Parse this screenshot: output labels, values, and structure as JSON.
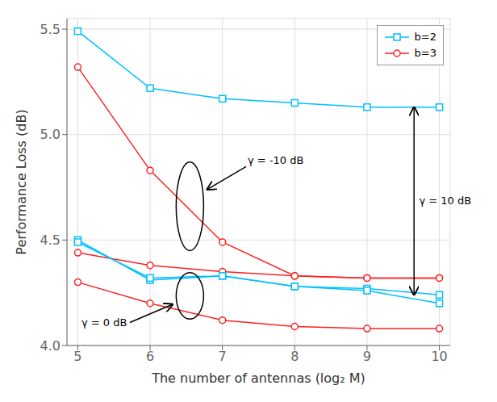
{
  "chart_data": {
    "type": "line",
    "x": [
      5,
      6,
      7,
      8,
      9,
      10
    ],
    "series": [
      {
        "name": "b=2",
        "color": "#00BFFF",
        "marker": "square",
        "values": [
          5.49,
          5.22,
          5.17,
          5.15,
          5.13,
          5.13
        ]
      },
      {
        "name": "b=3",
        "color": "#FF2020",
        "marker": "circle",
        "values": [
          5.32,
          4.83,
          4.49,
          4.33,
          4.32,
          4.32
        ]
      },
      {
        "name": "b=2",
        "color": "#00BFFF",
        "marker": "square",
        "values": [
          4.5,
          4.31,
          4.33,
          4.28,
          4.27,
          4.24
        ]
      },
      {
        "name": "b=3",
        "color": "#FF2020",
        "marker": "circle",
        "values": [
          4.44,
          4.38,
          4.35,
          4.33,
          4.32,
          4.32
        ]
      },
      {
        "name": "b=2",
        "color": "#00BFFF",
        "marker": "square",
        "values": [
          4.49,
          4.32,
          4.33,
          4.28,
          4.26,
          4.2
        ]
      },
      {
        "name": "b=3",
        "color": "#FF2020",
        "marker": "circle",
        "values": [
          4.3,
          4.2,
          4.12,
          4.09,
          4.08,
          4.08
        ]
      }
    ],
    "xlabel": "The number of antennas (log₂ M)",
    "ylabel": "Performance Loss (dB)",
    "xlim": [
      4.85,
      10.15
    ],
    "xticks": [
      5,
      6,
      7,
      8,
      9,
      10
    ],
    "ylim": [
      4.0,
      5.55
    ],
    "yticks": [
      {
        "value": 4.0,
        "label": "4.0"
      },
      4.5,
      {
        "value": 5.0,
        "label": "5.0"
      },
      5.5
    ],
    "grid": true,
    "legend": "upper right",
    "annotations": [
      "γ = -10 dB",
      "γ = 0 dB",
      "γ = 10 dB"
    ]
  }
}
